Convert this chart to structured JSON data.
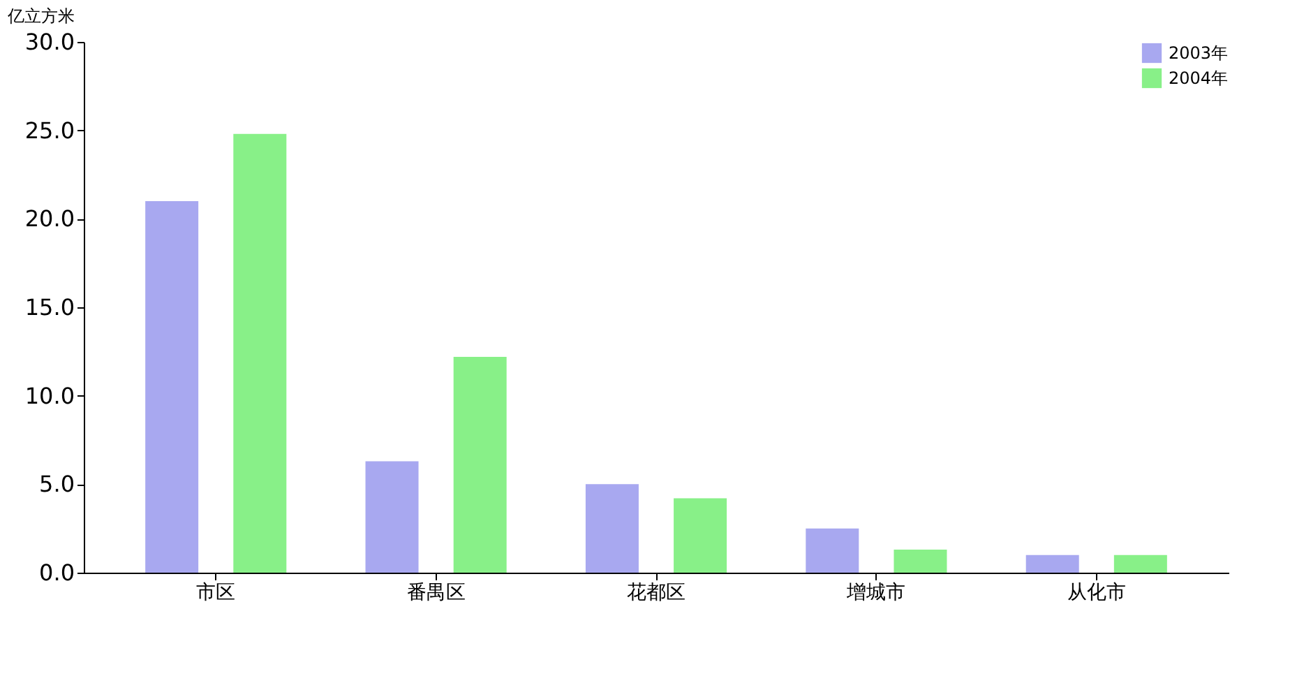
{
  "chart_data": {
    "type": "bar",
    "ylabel": "亿立方米",
    "categories": [
      "市区",
      "番禺区",
      "花都区",
      "增城市",
      "从化市"
    ],
    "series": [
      {
        "name": "2003年",
        "color": "#a8a8f0",
        "values": [
          21.0,
          6.3,
          5.0,
          2.5,
          1.0
        ]
      },
      {
        "name": "2004年",
        "color": "#88f088",
        "values": [
          24.8,
          12.2,
          4.2,
          1.3,
          1.0
        ]
      }
    ],
    "ylim": [
      0,
      30
    ],
    "yticks": [
      {
        "value": 0,
        "label": "0.0"
      },
      {
        "value": 5,
        "label": "5.0"
      },
      {
        "value": 10,
        "label": "10.0"
      },
      {
        "value": 15,
        "label": "15.0"
      },
      {
        "value": 20,
        "label": "20.0"
      },
      {
        "value": 25,
        "label": "25.0"
      },
      {
        "value": 30,
        "label": "30.0"
      }
    ],
    "grid": false,
    "legend": "top right"
  }
}
